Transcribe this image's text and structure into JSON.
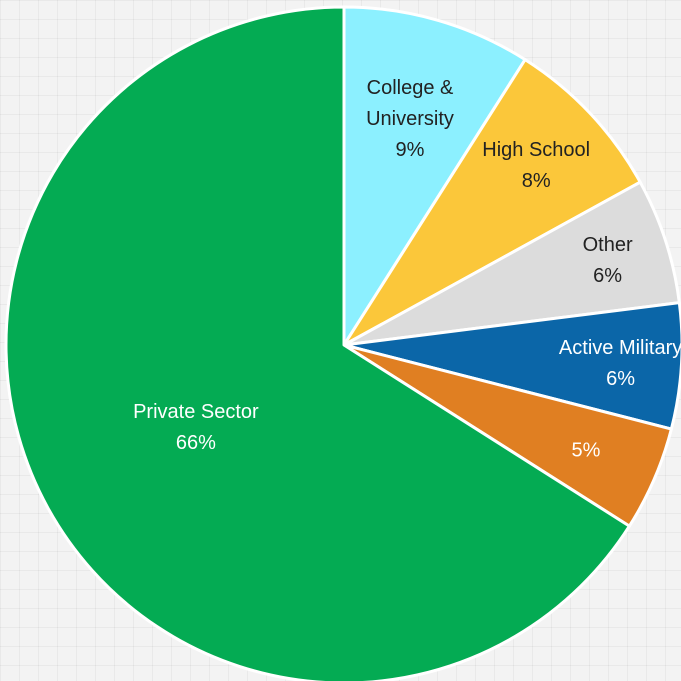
{
  "chart_data": {
    "type": "pie",
    "title": "",
    "slices": [
      {
        "label": [
          "College &",
          "University"
        ],
        "value": 9,
        "display": "9%",
        "color": "#8cf0ff",
        "text_color": "#222222"
      },
      {
        "label": [
          "High School"
        ],
        "value": 8,
        "display": "8%",
        "color": "#fbc73a",
        "text_color": "#222222"
      },
      {
        "label": [
          "Other"
        ],
        "value": 6,
        "display": "6%",
        "color": "#dcdcdc",
        "text_color": "#222222"
      },
      {
        "label": [
          "Active Military"
        ],
        "value": 6,
        "display": "6%",
        "color": "#0b66a8",
        "text_color": "#ffffff"
      },
      {
        "label": [],
        "value": 5,
        "display": "5%",
        "color": "#e07f22",
        "text_color": "#ffffff"
      },
      {
        "label": [
          "Private Sector"
        ],
        "value": 66,
        "display": "66%",
        "color": "#04ab53",
        "text_color": "#ffffff"
      }
    ],
    "start_angle_deg": 0,
    "direction": "clockwise",
    "legend": "none"
  }
}
